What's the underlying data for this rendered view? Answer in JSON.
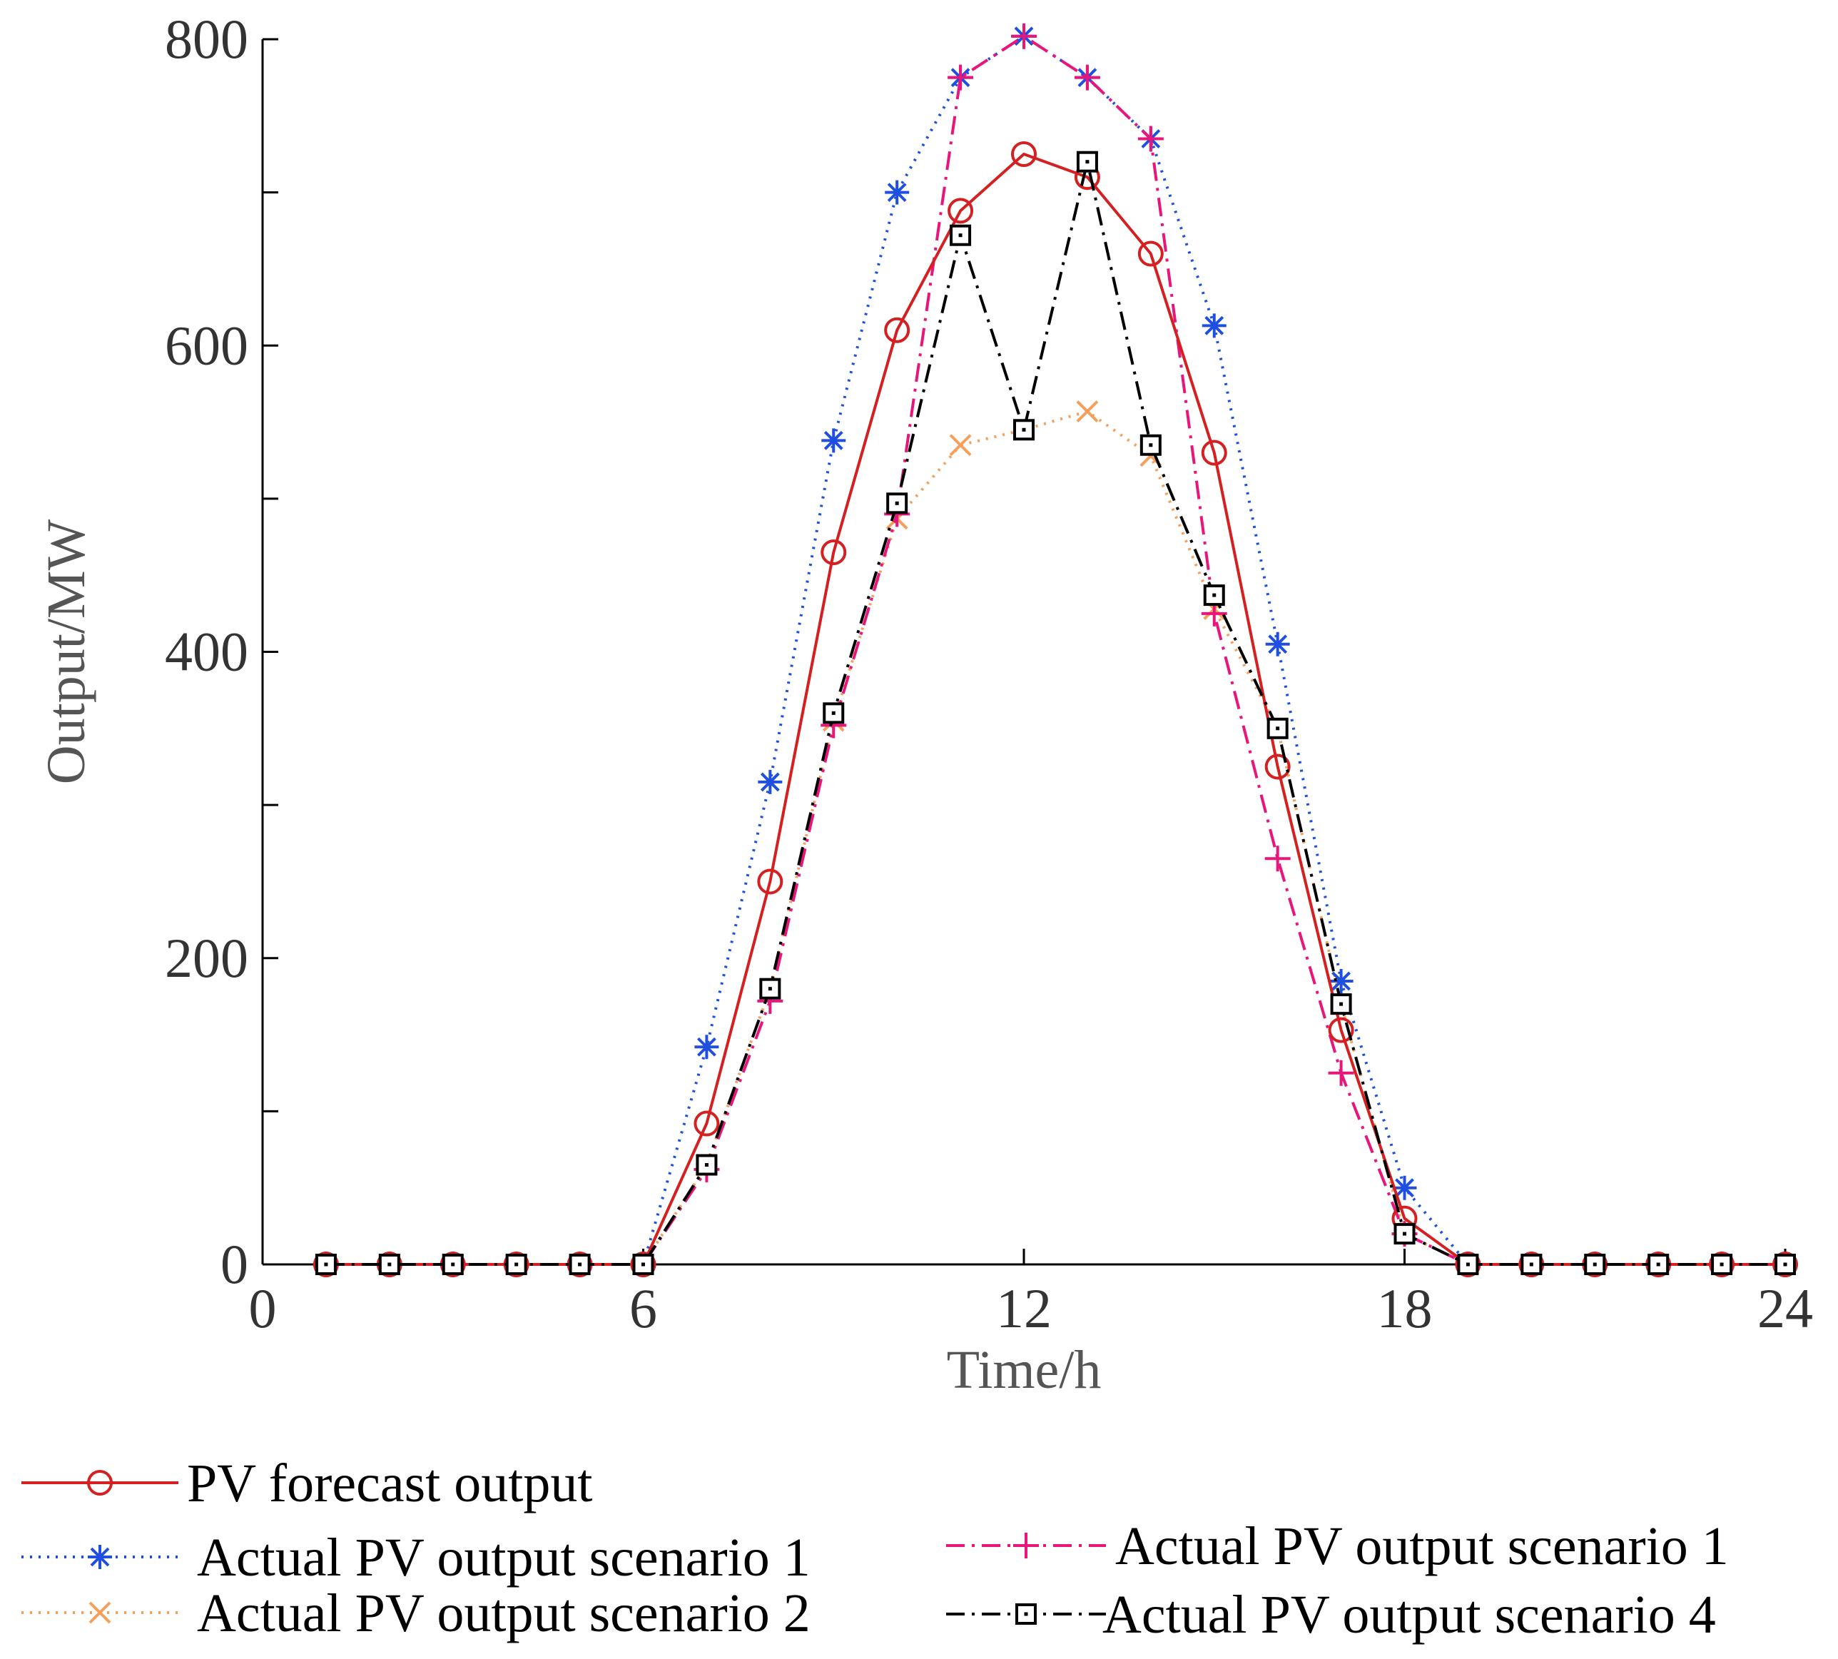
{
  "chart_data": {
    "type": "line",
    "xlabel": "Time/h",
    "ylabel": "Output/MW",
    "xlim": [
      0,
      24
    ],
    "ylim": [
      0,
      800
    ],
    "x_ticks": [
      0,
      6,
      12,
      18,
      24
    ],
    "y_ticks": [
      0,
      200,
      400,
      600,
      800
    ],
    "grid": false,
    "legend_position": "bottom",
    "x": [
      1,
      2,
      3,
      4,
      5,
      6,
      7,
      8,
      9,
      10,
      11,
      12,
      13,
      14,
      15,
      16,
      17,
      18,
      19,
      20,
      21,
      22,
      23,
      24
    ],
    "series": [
      {
        "name": "PV forecast output",
        "color": "#d42020",
        "marker": "circle",
        "line": "solid",
        "values": [
          0,
          0,
          0,
          0,
          0,
          0,
          92,
          250,
          465,
          610,
          688,
          725,
          710,
          660,
          530,
          325,
          153,
          30,
          0,
          0,
          0,
          0,
          0,
          0
        ]
      },
      {
        "name": "Actual PV output scenario 1",
        "color": "#1f4fe0",
        "marker": "asterisk",
        "line": "dotted",
        "values": [
          0,
          0,
          0,
          0,
          0,
          0,
          142,
          315,
          538,
          700,
          775,
          802,
          775,
          735,
          613,
          405,
          185,
          50,
          0,
          0,
          0,
          0,
          0,
          0
        ]
      },
      {
        "name": "Actual PV output scenario 2",
        "color": "#f5a05a",
        "marker": "x",
        "line": "dotted",
        "values": [
          0,
          0,
          0,
          0,
          0,
          0,
          65,
          180,
          355,
          487,
          535,
          545,
          557,
          528,
          428,
          350,
          170,
          20,
          0,
          0,
          0,
          0,
          0,
          0
        ]
      },
      {
        "name": "Actual PV output scenario 1",
        "color": "#e8157a",
        "marker": "plus",
        "line": "dashdot",
        "values": [
          0,
          0,
          0,
          0,
          0,
          0,
          62,
          172,
          352,
          490,
          775,
          802,
          775,
          735,
          425,
          265,
          125,
          20,
          0,
          0,
          0,
          0,
          0,
          0
        ]
      },
      {
        "name": "Actual PV output scenario 4",
        "color": "#000000",
        "marker": "square",
        "line": "dashdot",
        "values": [
          0,
          0,
          0,
          0,
          0,
          0,
          65,
          180,
          360,
          497,
          672,
          545,
          720,
          535,
          437,
          350,
          170,
          20,
          0,
          0,
          0,
          0,
          0,
          0
        ]
      }
    ]
  }
}
